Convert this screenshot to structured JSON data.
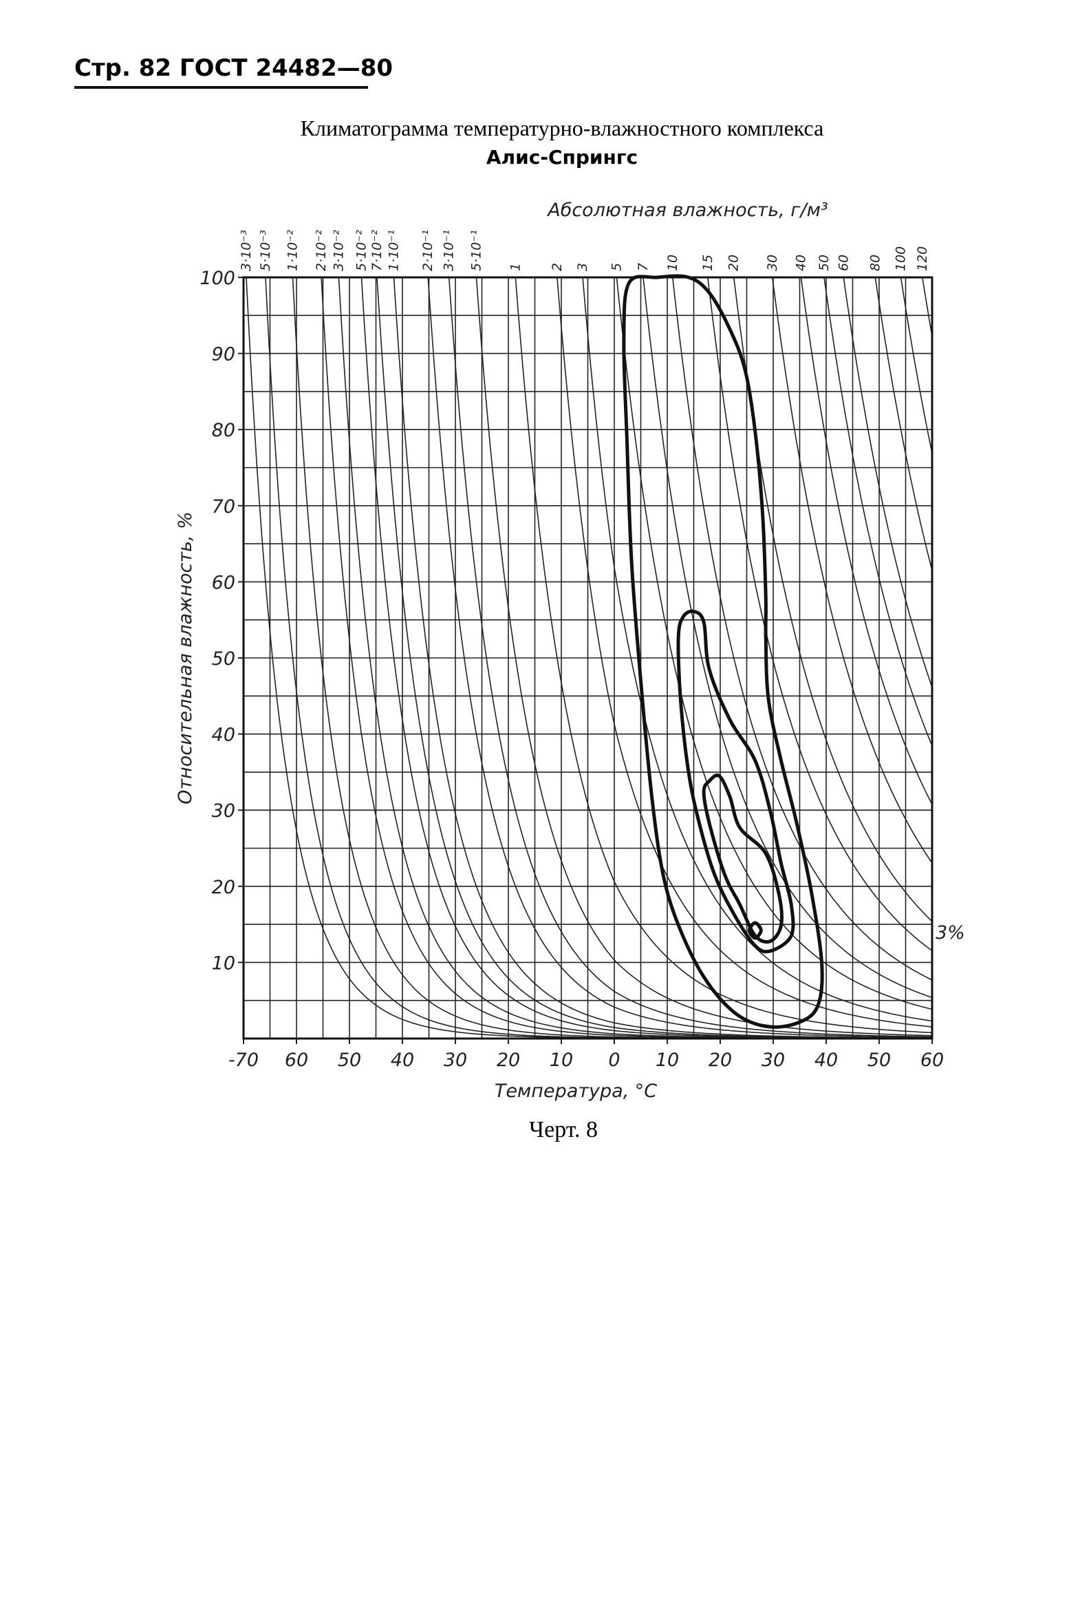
{
  "header": {
    "text": "Стр. 82 ГОСТ 24482—80"
  },
  "caption": "Черт. 8",
  "chart_data": {
    "type": "climatogram",
    "title": "Климатограмма температурно-влажностного комплекса",
    "subtitle": "Алис-Спрингс",
    "x_label": "Температура, °C",
    "y_label": "Относительная влажность, %",
    "top_label": "Абсолютная влажность, г/м³",
    "annotation": "3%",
    "xlim": [
      -70,
      60
    ],
    "ylim": [
      0,
      100
    ],
    "xticks": [
      {
        "value": -70,
        "label": "-70"
      },
      {
        "value": -60,
        "label": "60"
      },
      {
        "value": -50,
        "label": "50"
      },
      {
        "value": -40,
        "label": "40"
      },
      {
        "value": -30,
        "label": "30"
      },
      {
        "value": -20,
        "label": "20"
      },
      {
        "value": -10,
        "label": "10"
      },
      0,
      10,
      20,
      30,
      40,
      50,
      60
    ],
    "yticks": [
      10,
      20,
      30,
      40,
      50,
      60,
      70,
      80,
      90,
      100
    ],
    "xgrid": [
      -70,
      -65,
      -60,
      -55,
      -50,
      -45,
      -40,
      -35,
      -30,
      -25,
      -20,
      -15,
      -10,
      -5,
      0,
      5,
      10,
      15,
      20,
      25,
      30,
      35,
      40,
      45,
      50,
      55,
      60
    ],
    "ygrid": [
      0,
      5,
      10,
      15,
      20,
      25,
      30,
      35,
      40,
      45,
      50,
      55,
      60,
      65,
      70,
      75,
      80,
      85,
      90,
      95,
      100
    ],
    "absolute_humidity": [
      {
        "value": 0.003,
        "label": "3·10⁻³"
      },
      {
        "value": 0.005,
        "label": "5·10⁻³"
      },
      {
        "value": 0.01,
        "label": "1·10⁻²"
      },
      {
        "value": 0.02,
        "label": "2·10⁻²"
      },
      {
        "value": 0.03,
        "label": "3·10⁻²"
      },
      {
        "value": 0.05,
        "label": "5·10⁻²"
      },
      {
        "value": 0.07,
        "label": "7·10⁻²"
      },
      {
        "value": 0.1,
        "label": "1·10⁻¹"
      },
      {
        "value": 0.2,
        "label": "2·10⁻¹"
      },
      {
        "value": 0.3,
        "label": "3·10⁻¹"
      },
      {
        "value": 0.5,
        "label": "5·10⁻¹"
      },
      1,
      2,
      3,
      5,
      7,
      10,
      15,
      20,
      30,
      40,
      50,
      60,
      80,
      100,
      120
    ],
    "color": "#111111",
    "series": [
      {
        "x": [
          2.8,
          8.2,
          14.0,
          17.9,
          21.8,
          24.7,
          26.6,
          28.0,
          28.6,
          28.6,
          29.1,
          31.5,
          34.4,
          37.3,
          39.2,
          38.3,
          34.4,
          28.6,
          22.7,
          16.9,
          12.1,
          9.2,
          7.2,
          5.3,
          3.3,
          2.4,
          1.8
        ],
        "values": [
          99.3,
          100,
          100,
          98.0,
          93.2,
          87.8,
          79.7,
          68.9,
          58.1,
          52.7,
          44.6,
          36.5,
          28.4,
          18.9,
          9.5,
          4.1,
          2.0,
          1.6,
          3.4,
          8.1,
          14.9,
          21.6,
          31.1,
          44.6,
          62.2,
          78.4,
          91.9
        ]
      },
      {
        "x": [
          13.0,
          15.0,
          16.9,
          17.9,
          21.8,
          26.6,
          29.5,
          31.5,
          33.4,
          33.4,
          29.5,
          26.6,
          22.7,
          18.9,
          16.0,
          14.0,
          12.5,
          12.1
        ],
        "values": [
          55.4,
          56.1,
          54.7,
          48.6,
          41.9,
          36.5,
          29.7,
          23.0,
          17.6,
          13.5,
          11.5,
          12.2,
          16.2,
          21.6,
          28.4,
          35.1,
          44.6,
          52.7
        ]
      },
      {
        "x": [
          17.9,
          19.8,
          21.8,
          23.7,
          28.6,
          31.1,
          31.5,
          29.5,
          26.6,
          23.7,
          20.8,
          17.9,
          16.9
        ],
        "values": [
          33.8,
          34.5,
          31.8,
          27.7,
          24.3,
          18.9,
          14.9,
          12.8,
          13.5,
          17.6,
          21.6,
          28.4,
          32.4
        ]
      },
      {
        "x": [
          25.5,
          26.6,
          27.7,
          26.6
        ],
        "values": [
          14.2,
          15.2,
          14.2,
          13.2
        ]
      }
    ]
  }
}
